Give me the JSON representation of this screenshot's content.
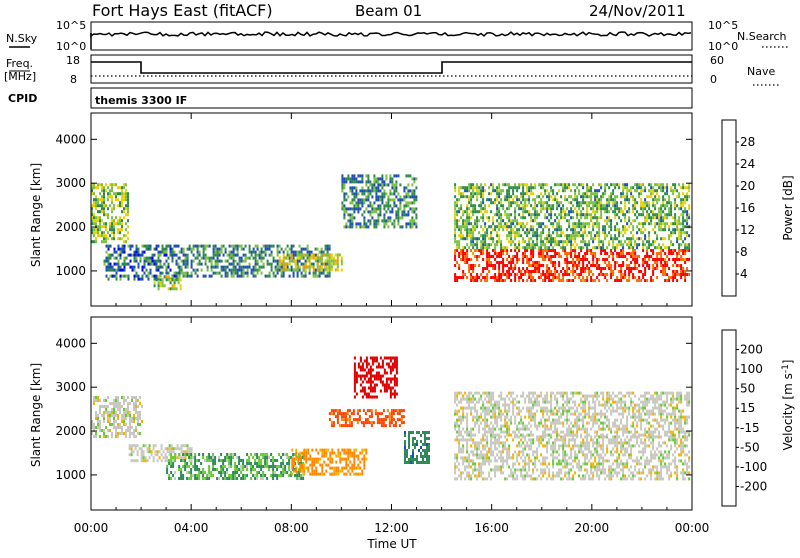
{
  "header": {
    "station": "Fort Hays East (fitACF)",
    "beam": "Beam 01",
    "date": "24/Nov/2011"
  },
  "top_panels": {
    "nsky_label": "N.Sky",
    "nsky_ticks": [
      "10^5",
      "10^0"
    ],
    "nsearch_label": "N.Search",
    "nsearch_ticks": [
      "10^5",
      "10^0"
    ],
    "freq_label": "Freq.",
    "freq_unit": "[MHz]",
    "freq_ticks": [
      "18",
      "8"
    ],
    "nave_label": "Nave",
    "nave_ticks": [
      "60",
      "0"
    ],
    "cpid_label": "CPID",
    "cpid_value": "themis 3300 IF"
  },
  "colors": {
    "power_scale": [
      "#0000ff",
      "#1f4fb0",
      "#2f8a4a",
      "#7bc043",
      "#e8d200",
      "#f5a000",
      "#ff6a00",
      "#ff0000"
    ],
    "velocity_scale": [
      "#0000cc",
      "#1a4fb8",
      "#2e8b57",
      "#66cc33",
      "#c8c8c0",
      "#f2b300",
      "#ff8800",
      "#ff4400",
      "#dd0000"
    ]
  },
  "chart_data": [
    {
      "type": "heatmap",
      "name": "power",
      "ylabel": "Slant Range [km]",
      "ylim": [
        200,
        4600
      ],
      "y_ticks": [
        "4000",
        "3000",
        "2000",
        "1000"
      ],
      "colorbar_label": "Power [dB]",
      "colorbar_ticks": [
        "28",
        "24",
        "20",
        "16",
        "12",
        "8",
        "4"
      ],
      "regions": [
        {
          "t": [
            0.0,
            1.5
          ],
          "r": [
            1700,
            3000
          ],
          "level": 0.45
        },
        {
          "t": [
            0.5,
            3.5
          ],
          "r": [
            800,
            1600
          ],
          "level": 0.25
        },
        {
          "t": [
            3.5,
            9.5
          ],
          "r": [
            900,
            1600
          ],
          "level": 0.3
        },
        {
          "t": [
            7.5,
            10.0
          ],
          "r": [
            1000,
            1400
          ],
          "level": 0.55
        },
        {
          "t": [
            10.0,
            13.0
          ],
          "r": [
            2000,
            3200
          ],
          "level": 0.3
        },
        {
          "t": [
            14.5,
            23.9
          ],
          "r": [
            800,
            1500
          ],
          "level": 0.92
        },
        {
          "t": [
            14.5,
            23.9
          ],
          "r": [
            1500,
            3000
          ],
          "level": 0.4
        },
        {
          "t": [
            2.5,
            3.6
          ],
          "r": [
            600,
            900
          ],
          "level": 0.5
        }
      ]
    },
    {
      "type": "heatmap",
      "name": "velocity",
      "xlabel": "Time UT",
      "ylabel": "Slant Range [km]",
      "ylim": [
        200,
        4600
      ],
      "y_ticks": [
        "4000",
        "3000",
        "2000",
        "1000"
      ],
      "x_ticks": [
        "00:00",
        "04:00",
        "08:00",
        "12:00",
        "16:00",
        "20:00",
        "00:00"
      ],
      "colorbar_label": "Velocity [m s^-1]",
      "colorbar_ticks": [
        "200",
        "100",
        "50",
        "15",
        "-15",
        "-50",
        "-100",
        "-200"
      ],
      "regions": [
        {
          "t": [
            0.0,
            2.0
          ],
          "r": [
            1900,
            2800
          ],
          "level": 0.0
        },
        {
          "t": [
            1.5,
            4.0
          ],
          "r": [
            1300,
            1700
          ],
          "level": 0.0
        },
        {
          "t": [
            3.0,
            8.5
          ],
          "r": [
            900,
            1500
          ],
          "level": 30
        },
        {
          "t": [
            8.0,
            11.0
          ],
          "r": [
            1000,
            1600
          ],
          "level": -40
        },
        {
          "t": [
            9.5,
            12.5
          ],
          "r": [
            2100,
            2500
          ],
          "level": -90
        },
        {
          "t": [
            10.5,
            12.2
          ],
          "r": [
            2800,
            3700
          ],
          "level": -200
        },
        {
          "t": [
            12.5,
            13.5
          ],
          "r": [
            1300,
            2000
          ],
          "level": 60
        },
        {
          "t": [
            14.5,
            23.9
          ],
          "r": [
            900,
            1900
          ],
          "level": 0.0
        },
        {
          "t": [
            14.5,
            23.9
          ],
          "r": [
            1900,
            2900
          ],
          "level": 0.0
        }
      ]
    }
  ]
}
